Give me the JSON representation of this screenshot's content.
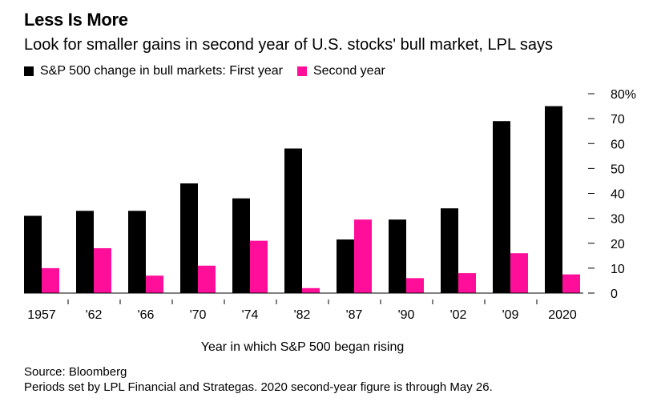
{
  "title": "Less Is More",
  "subtitle": "Look for smaller gains in second year of U.S. stocks' bull market, LPL says",
  "colors": {
    "first_year": "#000000",
    "second_year": "#ff0e9a",
    "axis": "#000000"
  },
  "chart_data": {
    "type": "bar",
    "categories": [
      "1957",
      "'62",
      "'66",
      "'70",
      "'74",
      "'82",
      "'87",
      "'90",
      "'02",
      "'09",
      "2020"
    ],
    "series": [
      {
        "name": "S&P 500 change in bull markets: First year",
        "values": [
          31,
          33,
          33,
          44,
          38,
          58,
          21.5,
          29.5,
          34,
          69,
          75
        ]
      },
      {
        "name": "Second year",
        "values": [
          10,
          18,
          7,
          11,
          21,
          2,
          29.5,
          6,
          8,
          16,
          7.5
        ]
      }
    ],
    "xlabel": "Year in which S&P 500 began rising",
    "ylabel": "",
    "ylim": [
      0,
      80
    ],
    "yticks": [
      0,
      10,
      20,
      30,
      40,
      50,
      60,
      70,
      80
    ],
    "ytick_labels": [
      "0",
      "10",
      "20",
      "30",
      "40",
      "50",
      "60",
      "70",
      "80%"
    ],
    "axis_side": "right",
    "legend_position": "top-left",
    "grid": false
  },
  "source": {
    "line1": "Source: Bloomberg",
    "line2": "Periods set by LPL Financial and Strategas. 2020 second-year figure is through May 26."
  }
}
